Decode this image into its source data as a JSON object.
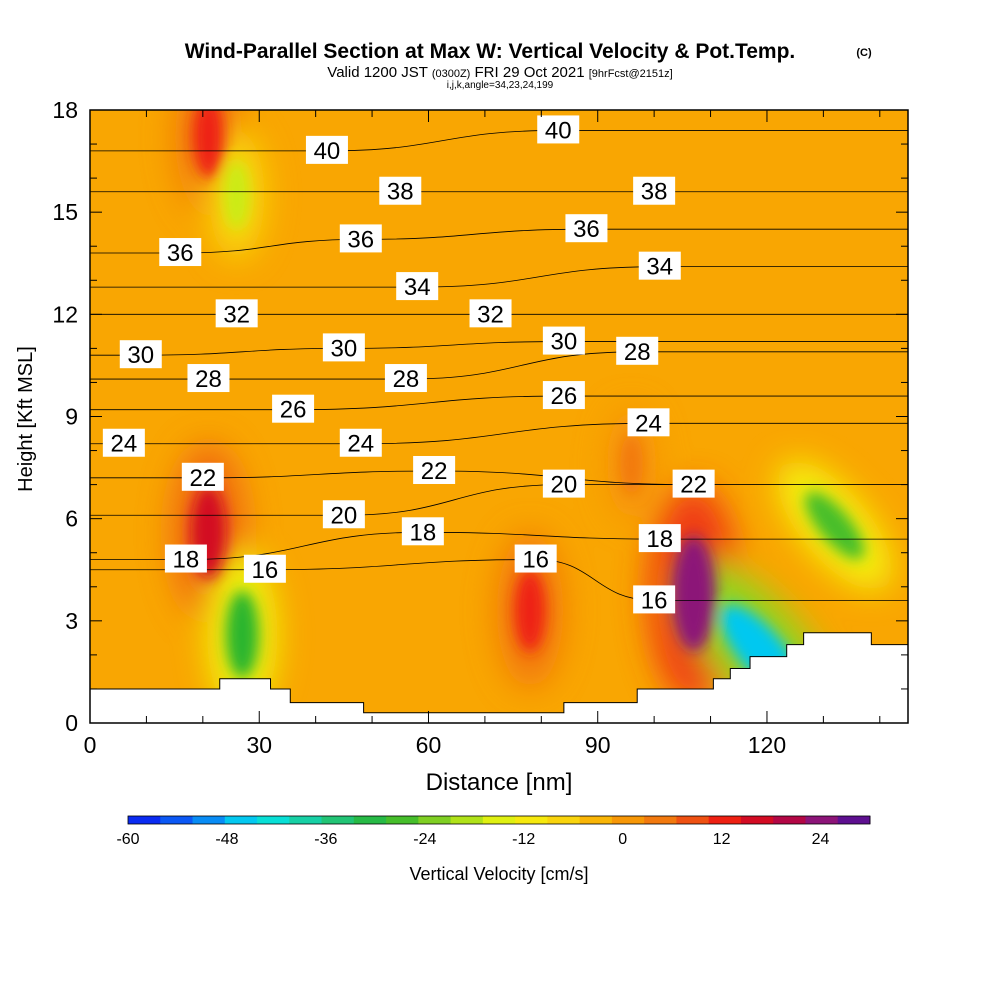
{
  "chart_data": {
    "type": "heatmap",
    "title": "Wind-Parallel Section at Max W: Vertical Velocity & Pot.Temp.",
    "title_mark": "(C)",
    "subtitle_valid": "Valid 1200 JST",
    "subtitle_utc": "(0300Z)",
    "subtitle_date": "FRI 29 Oct 2021",
    "subtitle_fcst": "[9hrFcst@2151z]",
    "subtitle_indices": "i,j,k,angle=34,23,24,199",
    "xlabel": "Distance [nm]",
    "ylabel": "Height [Kft MSL]",
    "xlim": [
      0,
      145
    ],
    "ylim": [
      0,
      18
    ],
    "x_ticks": [
      "0",
      "30",
      "60",
      "90",
      "120"
    ],
    "y_ticks": [
      "0",
      "3",
      "6",
      "9",
      "12",
      "15",
      "18"
    ],
    "colorbar": {
      "label": "Vertical Velocity [cm/s]",
      "min": -60,
      "max": 30,
      "step": 4,
      "tick_labels": [
        "-60",
        "-48",
        "-36",
        "-24",
        "-12",
        "0",
        "12",
        "24"
      ],
      "tick_values": [
        -60,
        -48,
        -36,
        -24,
        -12,
        0,
        12,
        24
      ]
    },
    "velocity_features": [
      {
        "kind": "updraft",
        "x": 21,
        "y": 5.6,
        "value": 18
      },
      {
        "kind": "updraft",
        "x": 21,
        "y": 17.2,
        "value": 14
      },
      {
        "kind": "updraft",
        "x": 78,
        "y": 3.3,
        "value": 14
      },
      {
        "kind": "updraft",
        "x": 107,
        "y": 3.8,
        "value": 26
      },
      {
        "kind": "updraft",
        "x": 96,
        "y": 7.6,
        "value": 6
      },
      {
        "kind": "downdraft",
        "x": 27,
        "y": 2.6,
        "value": -28
      },
      {
        "kind": "downdraft",
        "x": 26,
        "y": 15.5,
        "value": -16
      },
      {
        "kind": "downdraft",
        "x": 119,
        "y": 2.1,
        "value": -46
      },
      {
        "kind": "downdraft",
        "x": 132,
        "y": 5.8,
        "value": -26
      }
    ],
    "isentropes": {
      "values": [
        "16",
        "18",
        "20",
        "22",
        "24",
        "26",
        "28",
        "30",
        "32",
        "34",
        "36",
        "38",
        "40"
      ],
      "contour_labels": [
        {
          "text": "40",
          "x": 42,
          "y": 16.8
        },
        {
          "text": "40",
          "x": 83,
          "y": 17.4
        },
        {
          "text": "38",
          "x": 55,
          "y": 15.6
        },
        {
          "text": "38",
          "x": 100,
          "y": 15.6
        },
        {
          "text": "36",
          "x": 16,
          "y": 13.8
        },
        {
          "text": "36",
          "x": 48,
          "y": 14.2
        },
        {
          "text": "36",
          "x": 88,
          "y": 14.5
        },
        {
          "text": "34",
          "x": 58,
          "y": 12.8
        },
        {
          "text": "34",
          "x": 101,
          "y": 13.4
        },
        {
          "text": "32",
          "x": 26,
          "y": 12.0
        },
        {
          "text": "32",
          "x": 71,
          "y": 12.0
        },
        {
          "text": "30",
          "x": 9,
          "y": 10.8
        },
        {
          "text": "30",
          "x": 45,
          "y": 11.0
        },
        {
          "text": "30",
          "x": 84,
          "y": 11.2
        },
        {
          "text": "28",
          "x": 21,
          "y": 10.1
        },
        {
          "text": "28",
          "x": 56,
          "y": 10.1
        },
        {
          "text": "28",
          "x": 97,
          "y": 10.9
        },
        {
          "text": "26",
          "x": 36,
          "y": 9.2
        },
        {
          "text": "26",
          "x": 84,
          "y": 9.6
        },
        {
          "text": "24",
          "x": 6,
          "y": 8.2
        },
        {
          "text": "24",
          "x": 48,
          "y": 8.2
        },
        {
          "text": "24",
          "x": 99,
          "y": 8.8
        },
        {
          "text": "22",
          "x": 20,
          "y": 7.2
        },
        {
          "text": "22",
          "x": 61,
          "y": 7.4
        },
        {
          "text": "22",
          "x": 107,
          "y": 7.0
        },
        {
          "text": "20",
          "x": 45,
          "y": 6.1
        },
        {
          "text": "20",
          "x": 84,
          "y": 7.0
        },
        {
          "text": "18",
          "x": 17,
          "y": 4.8
        },
        {
          "text": "18",
          "x": 59,
          "y": 5.6
        },
        {
          "text": "18",
          "x": 101,
          "y": 5.4
        },
        {
          "text": "16",
          "x": 31,
          "y": 4.5
        },
        {
          "text": "16",
          "x": 79,
          "y": 4.8
        },
        {
          "text": "16",
          "x": 100,
          "y": 3.6
        }
      ]
    },
    "terrain_profile": [
      [
        0,
        1.0
      ],
      [
        23,
        1.0
      ],
      [
        23,
        1.3
      ],
      [
        32,
        1.3
      ],
      [
        32,
        1.0
      ],
      [
        35.5,
        1.0
      ],
      [
        35.5,
        0.6
      ],
      [
        48.5,
        0.6
      ],
      [
        48.5,
        0.3
      ],
      [
        84,
        0.3
      ],
      [
        84,
        0.6
      ],
      [
        97,
        0.6
      ],
      [
        97,
        1.0
      ],
      [
        110.5,
        1.0
      ],
      [
        110.5,
        1.3
      ],
      [
        113.5,
        1.3
      ],
      [
        113.5,
        1.6
      ],
      [
        117,
        1.6
      ],
      [
        117,
        1.95
      ],
      [
        123.5,
        1.95
      ],
      [
        123.5,
        2.3
      ],
      [
        126.5,
        2.3
      ],
      [
        126.5,
        2.65
      ],
      [
        138.5,
        2.65
      ],
      [
        138.5,
        2.3
      ],
      [
        145,
        2.3
      ]
    ]
  }
}
